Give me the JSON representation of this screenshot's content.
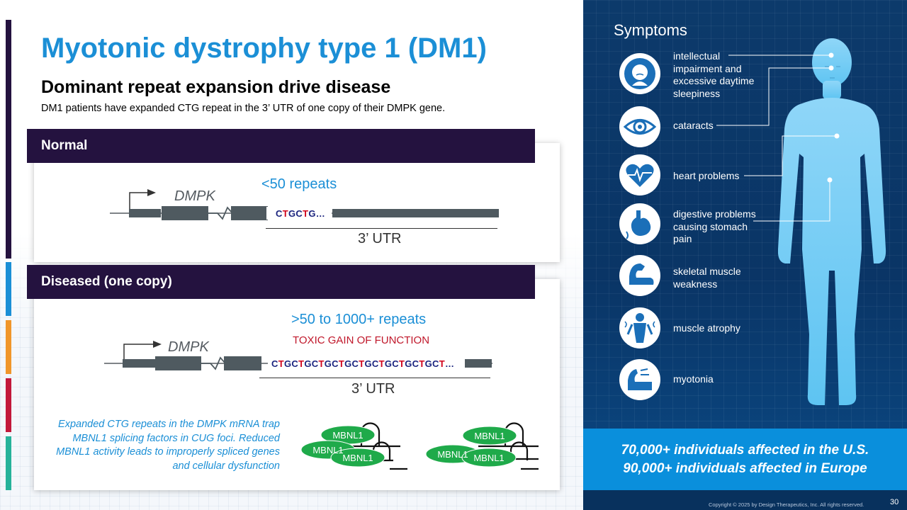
{
  "title": "Myotonic dystrophy type 1 (DM1)",
  "subtitle": "Dominant repeat expansion drive disease",
  "description": "DM1 patients have expanded CTG repeat in the 3’ UTR of one copy of their DMPK gene.",
  "normal": {
    "header": "Normal",
    "gene_label": "DMPK",
    "repeats": "<50 repeats",
    "sequence": "CTGCTG…",
    "utr_label": "3’ UTR"
  },
  "diseased": {
    "header": "Diseased (one copy)",
    "gene_label": "DMPK",
    "repeats": ">50 to 1000+ repeats",
    "toxic_label": "TOXIC GAIN OF FUNCTION",
    "sequence": "CTGCTGCTGCTGCTGCTGCTGCTGCT…",
    "utr_label": "3’ UTR"
  },
  "mbnl_note": "Expanded CTG repeats in the DMPK mRNA trap MBNL1 splicing factors in CUG foci. Reduced MBNL1 activity leads to improperly spliced genes and cellular dysfunction",
  "mbnl_label": "MBNL1",
  "symptoms": {
    "title": "Symptoms",
    "items": [
      {
        "label": "intellectual impairment and excessive daytime sleepiness",
        "icon": "head-icon"
      },
      {
        "label": "cataracts",
        "icon": "eye-icon"
      },
      {
        "label": "heart problems",
        "icon": "heart-icon"
      },
      {
        "label": "digestive problems causing stomach pain",
        "icon": "stomach-icon"
      },
      {
        "label": "skeletal muscle weakness",
        "icon": "arm-muscle-icon"
      },
      {
        "label": "muscle atrophy",
        "icon": "muscle-atrophy-icon"
      },
      {
        "label": "myotonia",
        "icon": "myotonia-icon"
      }
    ]
  },
  "stats": {
    "us": "70,000+ individuals affected in the U.S.",
    "europe": "90,000+ individuals affected in Europe"
  },
  "copyright": "Copyright © 2025 by Design Therapeutics, Inc. All rights reserved.",
  "page_number": "30",
  "colors": {
    "title_blue": "#1b8fd6",
    "band_purple": "#24123f",
    "right_navy": "#0c3a6b",
    "stats_blue": "#0a8fdc",
    "mbnl_green": "#1faa4a",
    "toxic_red": "#c0172a"
  }
}
